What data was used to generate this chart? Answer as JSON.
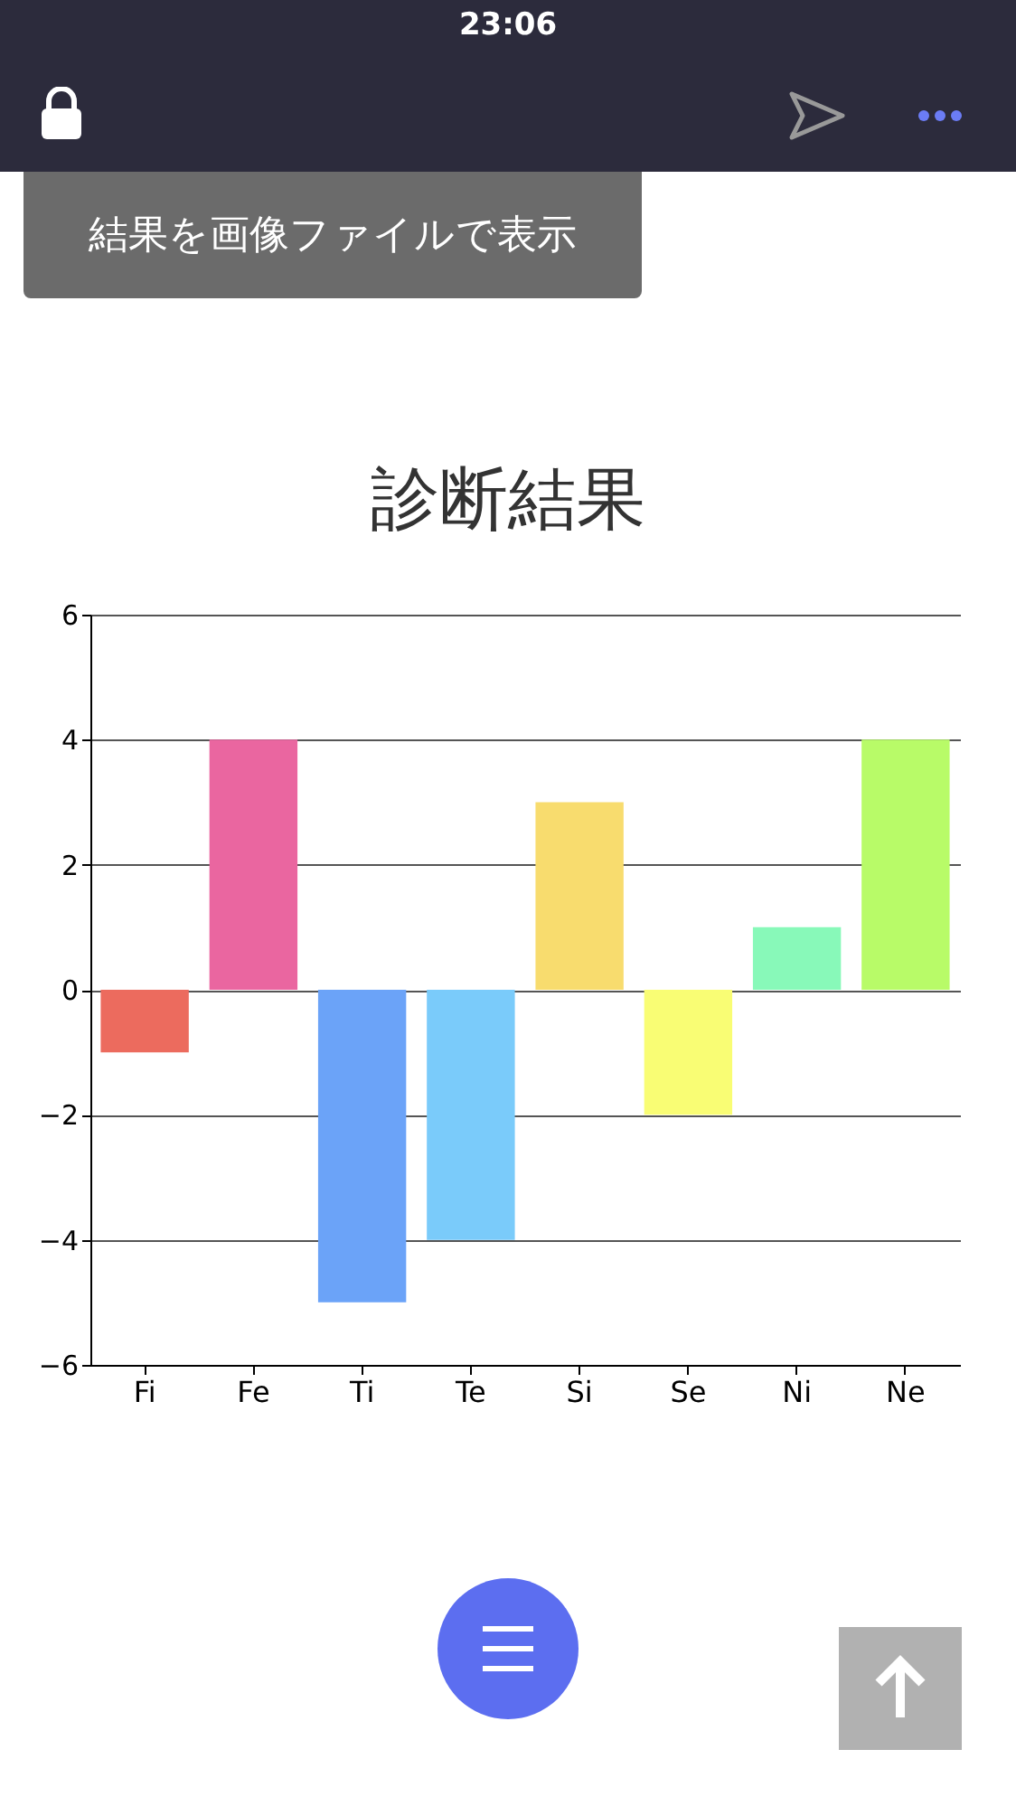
{
  "chart_data": {
    "type": "bar",
    "title": "診断結果",
    "categories": [
      "Fi",
      "Fe",
      "Ti",
      "Te",
      "Si",
      "Se",
      "Ni",
      "Ne"
    ],
    "values": [
      -1,
      4,
      -5,
      -4,
      3,
      -2,
      1,
      4
    ],
    "colors": [
      "#ec6b5e",
      "#ea66a0",
      "#6ba3f8",
      "#7acbfa",
      "#f8dc6e",
      "#f9fd74",
      "#88f9b9",
      "#b8fb68"
    ],
    "ylim": [
      -6,
      6
    ],
    "yticks": [
      -6,
      -4,
      -2,
      0,
      2,
      4,
      6
    ],
    "grid": "y",
    "annotations": [
      "23:06",
      "結果を画像ファイルで表示"
    ]
  }
}
